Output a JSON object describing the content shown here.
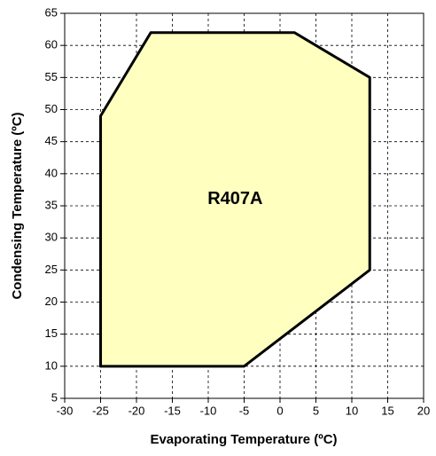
{
  "chart_data": {
    "type": "polygon",
    "xlabel": "Evaporating Temperature (ºC)",
    "ylabel": "Condensing Temperature (ºC)",
    "series": [
      {
        "name": "R407A",
        "color": "#ffffc0",
        "x": [
          -25,
          -18,
          2,
          12.5,
          12.5,
          -5,
          -25
        ],
        "values": [
          49,
          62,
          62,
          55,
          25,
          10,
          10
        ]
      }
    ],
    "xlim": [
      -30,
      20
    ],
    "xticks": [
      -30,
      -25,
      -20,
      -15,
      -10,
      -5,
      0,
      5,
      10,
      15,
      20
    ],
    "ylim": [
      5,
      65
    ],
    "yticks": [
      5,
      10,
      15,
      20,
      25,
      30,
      35,
      40,
      45,
      50,
      55,
      60,
      65
    ],
    "grid": true
  }
}
